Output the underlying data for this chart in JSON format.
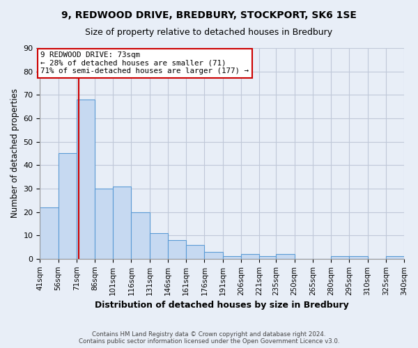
{
  "title1": "9, REDWOOD DRIVE, BREDBURY, STOCKPORT, SK6 1SE",
  "title2": "Size of property relative to detached houses in Bredbury",
  "xlabel": "Distribution of detached houses by size in Bredbury",
  "ylabel": "Number of detached properties",
  "footer1": "Contains HM Land Registry data © Crown copyright and database right 2024.",
  "footer2": "Contains public sector information licensed under the Open Government Licence v3.0.",
  "bin_labels": [
    "41sqm",
    "56sqm",
    "71sqm",
    "86sqm",
    "101sqm",
    "116sqm",
    "131sqm",
    "146sqm",
    "161sqm",
    "176sqm",
    "191sqm",
    "206sqm",
    "221sqm",
    "235sqm",
    "250sqm",
    "265sqm",
    "280sqm",
    "295sqm",
    "310sqm",
    "325sqm",
    "340sqm"
  ],
  "bin_edges": [
    41,
    56,
    71,
    86,
    101,
    116,
    131,
    146,
    161,
    176,
    191,
    206,
    221,
    235,
    250,
    265,
    280,
    295,
    310,
    325,
    340
  ],
  "bar_values": [
    22,
    45,
    68,
    30,
    31,
    20,
    11,
    8,
    6,
    3,
    1,
    2,
    1,
    2,
    0,
    0,
    1,
    1,
    0,
    1
  ],
  "bar_color": "#c6d9f1",
  "bar_edge_color": "#5b9bd5",
  "property_size": 73,
  "vline_color": "#cc0000",
  "annotation_text": "9 REDWOOD DRIVE: 73sqm\n← 28% of detached houses are smaller (71)\n71% of semi-detached houses are larger (177) →",
  "annotation_box_color": "#ffffff",
  "annotation_box_edge": "#cc0000",
  "ylim": [
    0,
    90
  ],
  "yticks": [
    0,
    10,
    20,
    30,
    40,
    50,
    60,
    70,
    80,
    90
  ],
  "fig_bg": "#e8eef7",
  "plot_bg": "#e8eef7",
  "grid_color": "#c0c8d8"
}
